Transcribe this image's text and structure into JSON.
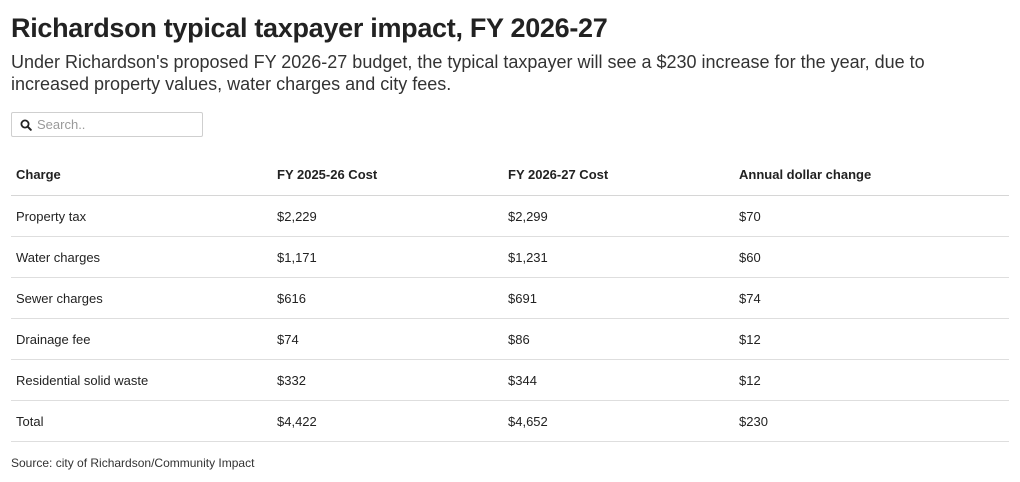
{
  "header": {
    "title": "Richardson typical taxpayer impact, FY 2026-27",
    "subtitle": "Under Richardson's proposed FY 2026-27 budget, the typical taxpayer will see a $230 increase for the year, due to increased property values, water charges and city fees."
  },
  "search": {
    "placeholder": "Search..",
    "icon": "search-icon"
  },
  "chart_data": {
    "type": "table",
    "columns": [
      "Charge",
      "FY 2025-26 Cost",
      "FY 2026-27 Cost",
      "Annual dollar change"
    ],
    "rows": [
      [
        "Property tax",
        "$2,229",
        "$2,299",
        "$70"
      ],
      [
        "Water charges",
        "$1,171",
        "$1,231",
        "$60"
      ],
      [
        "Sewer charges",
        "$616",
        "$691",
        "$74"
      ],
      [
        "Drainage fee",
        "$74",
        "$86",
        "$12"
      ],
      [
        "Residential solid waste",
        "$332",
        "$344",
        "$12"
      ],
      [
        "Total",
        "$4,422",
        "$4,652",
        "$230"
      ]
    ]
  },
  "footer": {
    "source": "Source: city of Richardson/Community Impact"
  }
}
